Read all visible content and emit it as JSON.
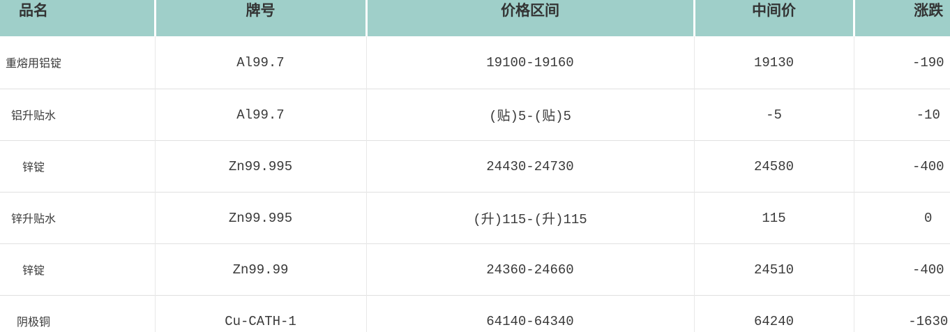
{
  "chart_data": {
    "type": "table",
    "columns": [
      "品名",
      "牌号",
      "价格区间",
      "中间价",
      "涨跌"
    ],
    "rows": [
      [
        "重熔用铝锭",
        "Al99.7",
        "19100-19160",
        "19130",
        "-190"
      ],
      [
        "铝升贴水",
        "Al99.7",
        "(贴)5-(贴)5",
        "-5",
        "-10"
      ],
      [
        "锌锭",
        "Zn99.995",
        "24430-24730",
        "24580",
        "-400"
      ],
      [
        "锌升贴水",
        "Zn99.995",
        "(升)115-(升)115",
        "115",
        "0"
      ],
      [
        "锌锭",
        "Zn99.99",
        "24360-24660",
        "24510",
        "-400"
      ],
      [
        "阴极铜",
        "Cu-CATH-1",
        "64140-64340",
        "64240",
        "-1630"
      ]
    ],
    "layout": {
      "header_position": "top",
      "grid": "on",
      "last_column_clipped_right": true,
      "last_row_clipped_bottom": true
    }
  },
  "colors": {
    "header_bg": "#9fcfc9",
    "header_text": "#333333",
    "cell_text": "#3a3a3a",
    "row_divider": "#e0e0e0",
    "column_divider": "#e8e8e8",
    "header_divider": "#ffffff"
  }
}
